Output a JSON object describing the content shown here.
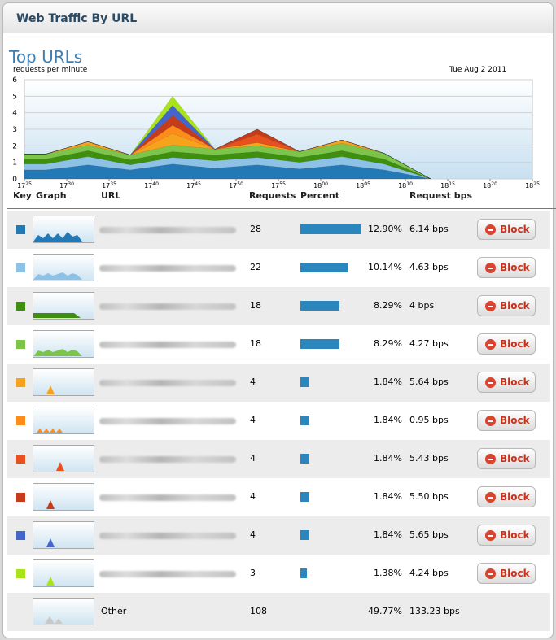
{
  "panel": {
    "title": "Web Traffic By URL"
  },
  "section": {
    "title": "Top URLs"
  },
  "chart_data": {
    "type": "area",
    "ylabel": "requests per minute",
    "date": "Tue Aug 2 2011",
    "ylim": [
      0,
      6
    ],
    "yticks": [
      "0",
      "1",
      "2",
      "3",
      "4",
      "5",
      "6"
    ],
    "xlim": [
      0,
      12
    ],
    "xticks": [
      {
        "h": "17",
        "m": "25"
      },
      {
        "h": "17",
        "m": "30"
      },
      {
        "h": "17",
        "m": "35"
      },
      {
        "h": "17",
        "m": "40"
      },
      {
        "h": "17",
        "m": "45"
      },
      {
        "h": "17",
        "m": "50"
      },
      {
        "h": "17",
        "m": "55"
      },
      {
        "h": "18",
        "m": "00"
      },
      {
        "h": "18",
        "m": "05"
      },
      {
        "h": "18",
        "m": "10"
      },
      {
        "h": "18",
        "m": "15"
      },
      {
        "h": "18",
        "m": "20"
      },
      {
        "h": "18",
        "m": "25"
      }
    ],
    "grid": true,
    "x": [
      0,
      0.5,
      1.5,
      2.5,
      3.5,
      4.5,
      5.5,
      6.5,
      7.5,
      8.5,
      9.6
    ],
    "series": [
      {
        "color": "#2379b5",
        "values": [
          0.55,
          0.55,
          0.85,
          0.55,
          0.9,
          0.65,
          0.85,
          0.6,
          0.85,
          0.55,
          0
        ]
      },
      {
        "color": "#8ec1e6",
        "values": [
          0.35,
          0.35,
          0.5,
          0.3,
          0.4,
          0.45,
          0.45,
          0.4,
          0.5,
          0.35,
          0
        ]
      },
      {
        "color": "#3f8f0f",
        "values": [
          0.3,
          0.3,
          0.35,
          0.3,
          0.35,
          0.35,
          0.35,
          0.3,
          0.35,
          0.3,
          0
        ]
      },
      {
        "color": "#7cc54a",
        "values": [
          0.3,
          0.3,
          0.35,
          0.3,
          0.4,
          0.35,
          0.35,
          0.35,
          0.45,
          0.35,
          0
        ]
      },
      {
        "color": "#f6a21a",
        "values": [
          0,
          0,
          0.2,
          0,
          0.7,
          0,
          0.2,
          0,
          0.2,
          0,
          0
        ]
      },
      {
        "color": "#ff8c1a",
        "values": [
          0,
          0,
          0,
          0,
          0.5,
          0,
          0,
          0,
          0,
          0,
          0
        ]
      },
      {
        "color": "#e8511d",
        "values": [
          0,
          0,
          0,
          0,
          0,
          0,
          0.5,
          0,
          0,
          0,
          0
        ]
      },
      {
        "color": "#c63c1b",
        "values": [
          0,
          0,
          0,
          0,
          0.6,
          0,
          0.3,
          0,
          0,
          0,
          0
        ]
      },
      {
        "color": "#4466cc",
        "values": [
          0,
          0,
          0,
          0,
          0.6,
          0,
          0,
          0,
          0,
          0,
          0
        ]
      },
      {
        "color": "#a9e31a",
        "values": [
          0,
          0,
          0,
          0,
          0.55,
          0,
          0,
          0,
          0,
          0,
          0
        ]
      }
    ]
  },
  "table": {
    "headers": {
      "key": "Key",
      "graph": "Graph",
      "url": "URL",
      "requests": "Requests",
      "percent": "Percent",
      "bps": "Request bps"
    },
    "block_label": "Block",
    "rows": [
      {
        "color": "#2379b5",
        "requests": "28",
        "percent": "12.90%",
        "pct": 12.9,
        "bps": "6.14 bps",
        "spark": {
          "fill": "#2379b5",
          "type": "mountains"
        }
      },
      {
        "color": "#8ec1e6",
        "requests": "22",
        "percent": "10.14%",
        "pct": 10.14,
        "bps": "4.63 bps",
        "spark": {
          "fill": "#8ec1e6",
          "type": "hills"
        }
      },
      {
        "color": "#3f8f0f",
        "requests": "18",
        "percent": "8.29%",
        "pct": 8.29,
        "bps": "4 bps",
        "spark": {
          "fill": "#3f8f0f",
          "type": "band"
        }
      },
      {
        "color": "#7cc54a",
        "requests": "18",
        "percent": "8.29%",
        "pct": 8.29,
        "bps": "4.27 bps",
        "spark": {
          "fill": "#7cc54a",
          "type": "hills"
        }
      },
      {
        "color": "#f6a21a",
        "requests": "4",
        "percent": "1.84%",
        "pct": 1.84,
        "bps": "5.64 bps",
        "spark": {
          "fill": "#f6a21a",
          "type": "spike1"
        }
      },
      {
        "color": "#ff8c1a",
        "requests": "4",
        "percent": "1.84%",
        "pct": 1.84,
        "bps": "0.95 bps",
        "spark": {
          "fill": "#ff8c1a",
          "type": "bumps"
        }
      },
      {
        "color": "#e8511d",
        "requests": "4",
        "percent": "1.84%",
        "pct": 1.84,
        "bps": "5.43 bps",
        "spark": {
          "fill": "#e8511d",
          "type": "spike2"
        }
      },
      {
        "color": "#c63c1b",
        "requests": "4",
        "percent": "1.84%",
        "pct": 1.84,
        "bps": "5.50 bps",
        "spark": {
          "fill": "#c63c1b",
          "type": "spike1"
        }
      },
      {
        "color": "#4466cc",
        "requests": "4",
        "percent": "1.84%",
        "pct": 1.84,
        "bps": "5.65 bps",
        "spark": {
          "fill": "#4466cc",
          "type": "spike1"
        }
      },
      {
        "color": "#a9e31a",
        "requests": "3",
        "percent": "1.38%",
        "pct": 1.38,
        "bps": "4.24 bps",
        "spark": {
          "fill": "#a9e31a",
          "type": "spike1"
        }
      }
    ],
    "other": {
      "url": "Other",
      "requests": "108",
      "percent": "49.77%",
      "bps": "133.23 bps",
      "spark": {
        "fill": "#c9c9c9",
        "type": "other"
      }
    }
  }
}
